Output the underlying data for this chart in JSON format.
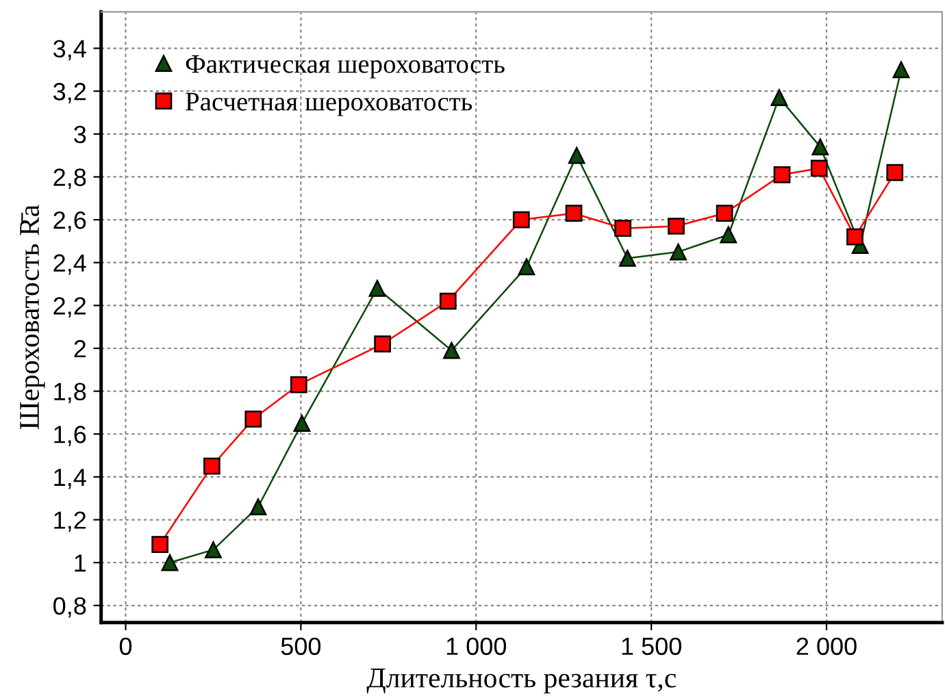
{
  "chart_data": {
    "type": "line",
    "xlabel": "Длительность резания τ,с",
    "ylabel": "Шероховатость R̄a",
    "xlim": [
      -70,
      2330
    ],
    "ylim": [
      0.72,
      3.57
    ],
    "xticks": [
      0,
      500,
      {
        "value": 1000,
        "label": "1 000"
      },
      {
        "value": 1500,
        "label": "1 500"
      },
      {
        "value": 2000,
        "label": "2 000"
      }
    ],
    "yticks": [
      {
        "value": 0.8,
        "label": "0,8"
      },
      1,
      {
        "value": 1.2,
        "label": "1,2"
      },
      {
        "value": 1.4,
        "label": "1,4"
      },
      {
        "value": 1.6,
        "label": "1,6"
      },
      {
        "value": 1.8,
        "label": "1,8"
      },
      2,
      {
        "value": 2.2,
        "label": "2,2"
      },
      {
        "value": 2.4,
        "label": "2,4"
      },
      {
        "value": 2.6,
        "label": "2,6"
      },
      {
        "value": 2.8,
        "label": "2,8"
      },
      3,
      {
        "value": 3.2,
        "label": "3,2"
      },
      {
        "value": 3.4,
        "label": "3,4"
      }
    ],
    "grid": true,
    "legend": "top left",
    "line_style": "solid",
    "series": [
      {
        "name": "Фактическая шероховатость",
        "color": "#0b4a0b",
        "marker": "triangle",
        "x": [
          126,
          250,
          378,
          503,
          718,
          930,
          1144,
          1287,
          1432,
          1577,
          1720,
          1865,
          1982,
          2096,
          2213
        ],
        "values": [
          1.0,
          1.06,
          1.26,
          1.65,
          2.28,
          1.99,
          2.38,
          2.9,
          2.42,
          2.45,
          2.53,
          3.17,
          2.94,
          2.48,
          3.3
        ]
      },
      {
        "name": "Расчетная шероховатость",
        "color": "#ff0000",
        "marker": "square",
        "x": [
          98,
          246,
          364,
          494,
          733,
          920,
          1129,
          1279,
          1419,
          1571,
          1709,
          1873,
          1979,
          2081,
          2195
        ],
        "values": [
          1.085,
          1.45,
          1.67,
          1.83,
          2.02,
          2.22,
          2.6,
          2.63,
          2.56,
          2.57,
          2.63,
          2.81,
          2.84,
          2.52,
          2.82
        ]
      }
    ]
  }
}
